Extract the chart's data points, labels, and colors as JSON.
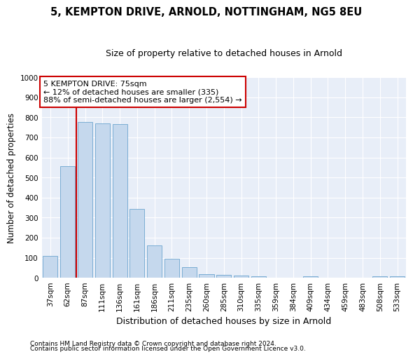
{
  "title": "5, KEMPTON DRIVE, ARNOLD, NOTTINGHAM, NG5 8EU",
  "subtitle": "Size of property relative to detached houses in Arnold",
  "xlabel": "Distribution of detached houses by size in Arnold",
  "ylabel": "Number of detached properties",
  "bar_color": "#c5d8ed",
  "bar_edgecolor": "#7aadd4",
  "background_color": "#e8eef8",
  "grid_color": "#ffffff",
  "fig_bg": "#ffffff",
  "categories": [
    "37sqm",
    "62sqm",
    "87sqm",
    "111sqm",
    "136sqm",
    "161sqm",
    "186sqm",
    "211sqm",
    "235sqm",
    "260sqm",
    "285sqm",
    "310sqm",
    "335sqm",
    "359sqm",
    "384sqm",
    "409sqm",
    "434sqm",
    "459sqm",
    "483sqm",
    "508sqm",
    "533sqm"
  ],
  "values": [
    110,
    558,
    778,
    770,
    765,
    342,
    162,
    95,
    52,
    18,
    15,
    10,
    8,
    0,
    0,
    8,
    0,
    0,
    0,
    8,
    8
  ],
  "ylim": [
    0,
    1000
  ],
  "yticks": [
    0,
    100,
    200,
    300,
    400,
    500,
    600,
    700,
    800,
    900,
    1000
  ],
  "red_line_x": 1.5,
  "annotation_title": "5 KEMPTON DRIVE: 75sqm",
  "annotation_line1": "← 12% of detached houses are smaller (335)",
  "annotation_line2": "88% of semi-detached houses are larger (2,554) →",
  "annotation_box_color": "#ffffff",
  "annotation_border_color": "#cc0000",
  "line_color": "#cc0000",
  "footer1": "Contains HM Land Registry data © Crown copyright and database right 2024.",
  "footer2": "Contains public sector information licensed under the Open Government Licence v3.0.",
  "title_fontsize": 10.5,
  "subtitle_fontsize": 9,
  "ylabel_fontsize": 8.5,
  "xlabel_fontsize": 9,
  "tick_fontsize": 7.5,
  "footer_fontsize": 6.5,
  "annotation_fontsize": 8
}
